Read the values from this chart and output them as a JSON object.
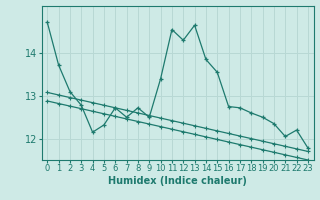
{
  "title": "",
  "xlabel": "Humidex (Indice chaleur)",
  "bg_color": "#ceeae6",
  "grid_color": "#b8d8d4",
  "line_color": "#1e7a6e",
  "x_values": [
    0,
    1,
    2,
    3,
    4,
    5,
    6,
    7,
    8,
    9,
    10,
    11,
    12,
    13,
    14,
    15,
    16,
    17,
    18,
    19,
    20,
    21,
    22,
    23
  ],
  "line1_y": [
    14.72,
    13.72,
    13.1,
    12.78,
    12.15,
    12.32,
    12.72,
    12.5,
    12.72,
    12.5,
    13.4,
    14.55,
    14.3,
    14.65,
    13.85,
    13.55,
    12.75,
    12.72,
    12.6,
    12.5,
    12.35,
    12.05,
    12.2,
    11.78
  ],
  "line2_y": [
    13.08,
    13.02,
    12.96,
    12.9,
    12.84,
    12.78,
    12.72,
    12.66,
    12.6,
    12.54,
    12.48,
    12.42,
    12.36,
    12.3,
    12.24,
    12.18,
    12.12,
    12.06,
    12.0,
    11.94,
    11.88,
    11.82,
    11.76,
    11.7
  ],
  "line3_y": [
    12.88,
    12.82,
    12.76,
    12.7,
    12.64,
    12.58,
    12.52,
    12.46,
    12.4,
    12.34,
    12.28,
    12.22,
    12.16,
    12.1,
    12.04,
    11.98,
    11.92,
    11.86,
    11.8,
    11.74,
    11.68,
    11.62,
    11.56,
    11.5
  ],
  "ylim": [
    11.5,
    15.1
  ],
  "yticks": [
    12,
    13,
    14
  ],
  "xticks": [
    0,
    1,
    2,
    3,
    4,
    5,
    6,
    7,
    8,
    9,
    10,
    11,
    12,
    13,
    14,
    15,
    16,
    17,
    18,
    19,
    20,
    21,
    22,
    23
  ],
  "tick_fontsize": 6,
  "xlabel_fontsize": 7
}
